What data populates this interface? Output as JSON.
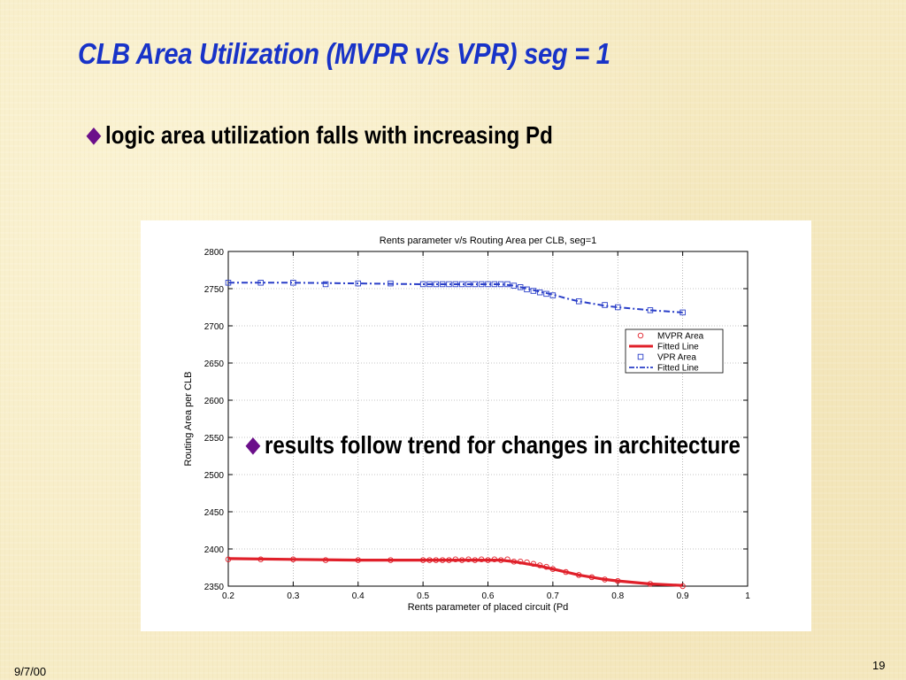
{
  "slide": {
    "title": "CLB Area Utilization (MVPR v/s VPR) seg = 1",
    "bullets": [
      "logic area utilization falls with increasing Pd",
      "results follow trend for changes in architecture"
    ],
    "date": "9/7/00",
    "page_number": "19",
    "bullet_icon": "purple-diamond-icon",
    "colors": {
      "title": "#1833c8",
      "bullet_icon": "#6b0f8a"
    }
  },
  "chart_data": {
    "type": "line",
    "title": "Rents parameter v/s Routing Area per CLB, seg=1",
    "xlabel": "Rents parameter of placed circuit (Pd",
    "ylabel": "Routing Area per CLB",
    "xlim": [
      0.2,
      1
    ],
    "ylim": [
      2350,
      2800
    ],
    "xticks": [
      "0.2",
      "0.3",
      "0.4",
      "0.5",
      "0.6",
      "0.7",
      "0.8",
      "0.9",
      "1"
    ],
    "yticks": [
      "2350",
      "2400",
      "2450",
      "2500",
      "2550",
      "2600",
      "2650",
      "2700",
      "2750",
      "2800"
    ],
    "grid": true,
    "legend_position": "right",
    "series": [
      {
        "name": "MVPR Area",
        "style": "markers",
        "marker": "circle",
        "color": "#e0202a",
        "x": [
          0.2,
          0.25,
          0.3,
          0.35,
          0.4,
          0.45,
          0.5,
          0.51,
          0.52,
          0.53,
          0.54,
          0.55,
          0.56,
          0.57,
          0.58,
          0.59,
          0.6,
          0.61,
          0.62,
          0.63,
          0.64,
          0.65,
          0.66,
          0.67,
          0.68,
          0.69,
          0.7,
          0.72,
          0.74,
          0.76,
          0.78,
          0.8,
          0.85,
          0.9
        ],
        "y": [
          2386,
          2386,
          2386,
          2385,
          2385,
          2385,
          2385,
          2385,
          2385,
          2385,
          2385,
          2386,
          2385,
          2386,
          2385,
          2386,
          2385,
          2386,
          2385,
          2386,
          2383,
          2383,
          2382,
          2380,
          2378,
          2376,
          2373,
          2369,
          2365,
          2362,
          2359,
          2357,
          2353,
          2350
        ]
      },
      {
        "name": "Fitted Line",
        "style": "solid",
        "color": "#e0202a",
        "x": [
          0.2,
          0.3,
          0.4,
          0.5,
          0.55,
          0.6,
          0.62,
          0.64,
          0.66,
          0.68,
          0.7,
          0.72,
          0.74,
          0.76,
          0.78,
          0.8,
          0.85,
          0.9
        ],
        "y": [
          2387,
          2386,
          2385,
          2385,
          2385,
          2385,
          2385,
          2383,
          2380,
          2377,
          2373,
          2369,
          2365,
          2362,
          2359,
          2357,
          2353,
          2351
        ]
      },
      {
        "name": "VPR Area",
        "style": "markers",
        "marker": "square",
        "color": "#2a3fc8",
        "x": [
          0.2,
          0.25,
          0.3,
          0.35,
          0.4,
          0.45,
          0.5,
          0.51,
          0.52,
          0.53,
          0.54,
          0.55,
          0.56,
          0.57,
          0.58,
          0.59,
          0.6,
          0.61,
          0.62,
          0.63,
          0.64,
          0.65,
          0.66,
          0.67,
          0.68,
          0.69,
          0.7,
          0.74,
          0.78,
          0.8,
          0.85,
          0.9
        ],
        "y": [
          2758,
          2758,
          2758,
          2756,
          2757,
          2757,
          2756,
          2756,
          2756,
          2756,
          2756,
          2756,
          2756,
          2756,
          2756,
          2756,
          2756,
          2756,
          2756,
          2756,
          2754,
          2752,
          2749,
          2747,
          2745,
          2743,
          2741,
          2733,
          2728,
          2725,
          2721,
          2718
        ]
      },
      {
        "name": "Fitted Line",
        "style": "dashdot",
        "color": "#2a3fc8",
        "x": [
          0.2,
          0.3,
          0.4,
          0.5,
          0.55,
          0.6,
          0.62,
          0.64,
          0.66,
          0.68,
          0.7,
          0.72,
          0.74,
          0.76,
          0.78,
          0.8,
          0.85,
          0.9
        ],
        "y": [
          2758,
          2758,
          2757,
          2756,
          2756,
          2756,
          2756,
          2754,
          2750,
          2746,
          2742,
          2737,
          2733,
          2730,
          2727,
          2725,
          2721,
          2718
        ]
      }
    ]
  }
}
